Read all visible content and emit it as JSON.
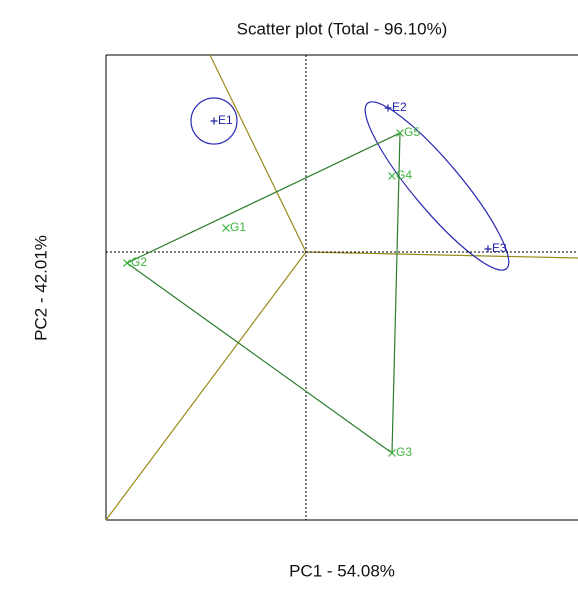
{
  "chart_data": {
    "type": "scatter",
    "title": "Scatter plot (Total - 96.10%)",
    "xlabel": "PC1 - 54.08%",
    "ylabel": "PC2 - 42.01%",
    "xlim": [
      -2.0,
      2.72
    ],
    "ylim": [
      -2.68,
      1.97
    ],
    "environments": {
      "color": "#1f1fa8",
      "labels": [
        "E1",
        "E2",
        "E3"
      ],
      "x": [
        -0.92,
        0.82,
        1.82
      ],
      "y": [
        1.31,
        1.44,
        0.03
      ]
    },
    "genotypes": {
      "color": "#3cb43c",
      "labels": [
        "G1",
        "G2",
        "G3",
        "G4",
        "G5"
      ],
      "x": [
        -0.8,
        -1.79,
        0.86,
        0.86,
        0.94
      ],
      "y": [
        0.24,
        -0.11,
        -2.01,
        0.76,
        1.19
      ]
    }
  }
}
